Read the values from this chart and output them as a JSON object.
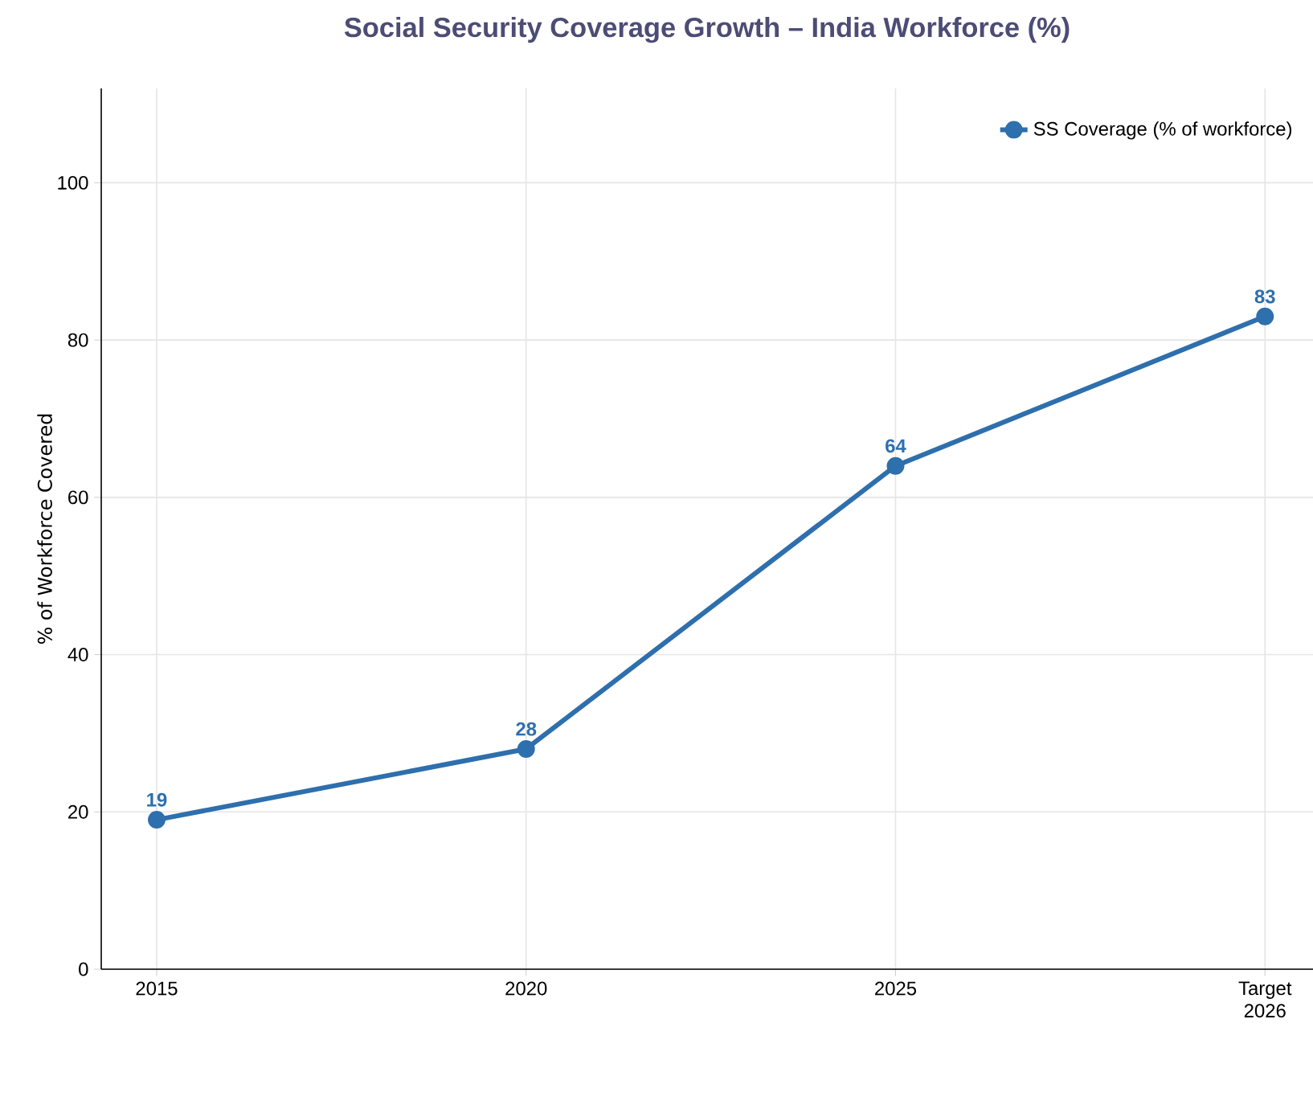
{
  "chart_data": {
    "type": "line",
    "title": "Social Security Coverage Growth – India Workforce (%)",
    "ylabel": "% of Workforce Covered",
    "categories": [
      "2015",
      "2020",
      "2025",
      "Target 2026"
    ],
    "series": [
      {
        "name": "SS Coverage (% of workforce)",
        "color": "#2e6fad",
        "values": [
          19,
          28,
          64,
          83
        ]
      }
    ],
    "ylim": [
      0,
      112
    ],
    "yticks": [
      0,
      20,
      40,
      60,
      80,
      100
    ],
    "grid": true,
    "legend": "top right",
    "marker": "circle",
    "line_style": "solid",
    "data_labels": true
  }
}
